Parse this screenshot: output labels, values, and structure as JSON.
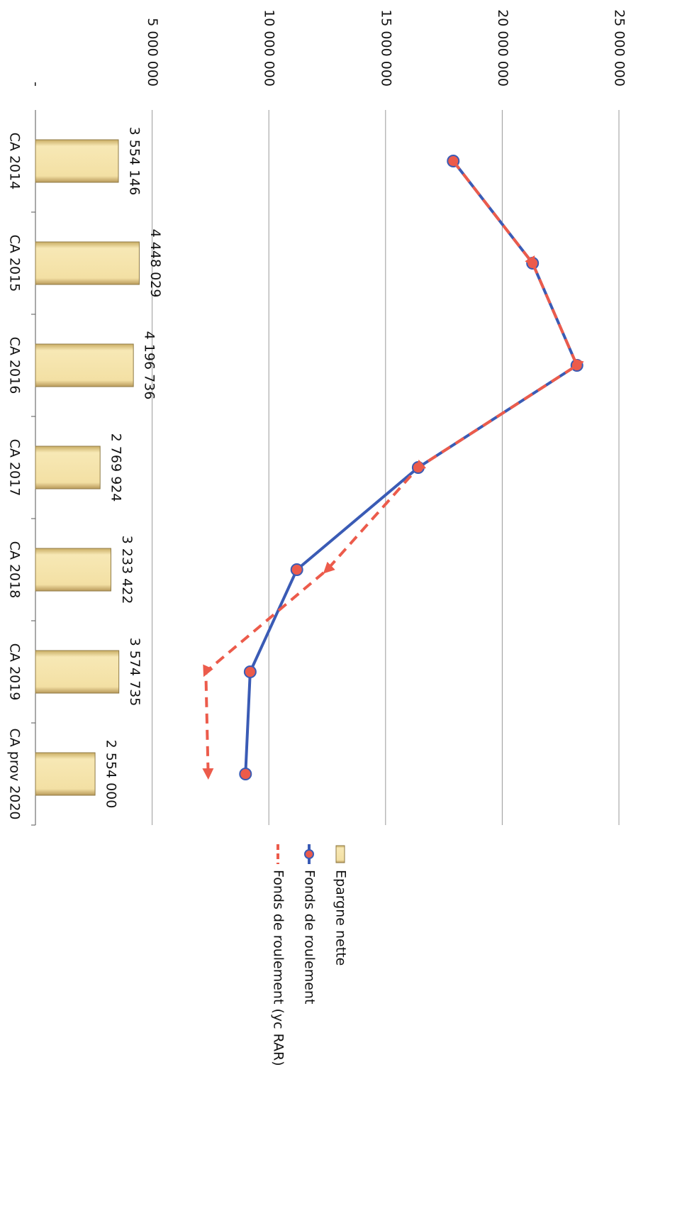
{
  "chart_data": {
    "type": "combo",
    "categories": [
      "CA 2014",
      "CA 2015",
      "CA 2016",
      "CA 2017",
      "CA 2018",
      "CA 2019",
      "CA prov 2020"
    ],
    "series": [
      {
        "name": "Epargne nette",
        "type": "bar",
        "color": "#f0dc9c",
        "values": [
          3554146,
          4448029,
          4196736,
          2769924,
          3233422,
          3574735,
          2554000
        ],
        "value_labels": [
          "3 554 146",
          "4 448 029",
          "4 196 736",
          "2 769 924",
          "3 233 422",
          "3 574 735",
          "2 554 000"
        ]
      },
      {
        "name": "Fonds de roulement",
        "type": "line",
        "color": "#3a5bb5",
        "values": [
          17900000,
          21300000,
          23200000,
          16400000,
          11200000,
          9200000,
          9000000
        ]
      },
      {
        "name": "Fonds de roulement (yc RAR)",
        "type": "dashed",
        "color": "#ec5b4b",
        "values": [
          17900000,
          21300000,
          23200000,
          16400000,
          12500000,
          7300000,
          7400000
        ]
      }
    ],
    "ylim": [
      0,
      25000000
    ],
    "yticks": [
      {
        "value": 0,
        "label": "-"
      },
      {
        "value": 5000000,
        "label": "5 000 000"
      },
      {
        "value": 10000000,
        "label": "10 000 000"
      },
      {
        "value": 15000000,
        "label": "15 000 000"
      },
      {
        "value": 20000000,
        "label": "20 000 000"
      },
      {
        "value": 25000000,
        "label": "25 000 000"
      }
    ],
    "grid": true
  }
}
